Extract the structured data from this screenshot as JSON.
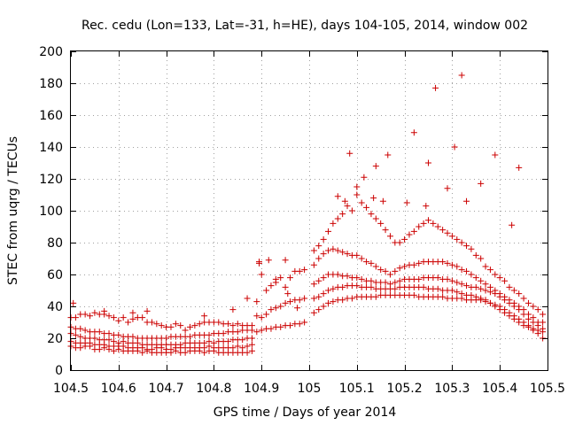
{
  "chart_data": {
    "type": "scatter",
    "title": "Rec. cedu (Lon=133, Lat=-31, h=HE), days 104-105, 2014, window 002",
    "xlabel": "GPS time / Days of year 2014",
    "ylabel": "STEC from uqrg / TECUs",
    "xlim": [
      104.5,
      105.5
    ],
    "ylim": [
      0,
      200
    ],
    "xticks": [
      104.5,
      104.6,
      104.7,
      104.8,
      104.9,
      105,
      105.1,
      105.2,
      105.3,
      105.4,
      105.5
    ],
    "xtick_labels": [
      "104.5",
      "104.6",
      "104.7",
      "104.8",
      "104.9",
      "105",
      "105.1",
      "105.2",
      "105.3",
      "105.4",
      "105.5"
    ],
    "yticks": [
      0,
      20,
      40,
      60,
      80,
      100,
      120,
      140,
      160,
      180,
      200
    ],
    "ytick_labels": [
      "0",
      "20",
      "40",
      "60",
      "80",
      "100",
      "120",
      "140",
      "160",
      "180",
      "200"
    ],
    "grid": true,
    "marker": "plus",
    "color": "#cc0000",
    "series": [
      {
        "name": "STEC",
        "x": [
          104.5,
          104.51,
          104.52,
          104.53,
          104.54,
          104.55,
          104.56,
          104.57,
          104.58,
          104.59,
          104.6,
          104.61,
          104.62,
          104.63,
          104.64,
          104.65,
          104.66,
          104.67,
          104.68,
          104.69,
          104.7,
          104.71,
          104.72,
          104.73,
          104.74,
          104.75,
          104.76,
          104.77,
          104.78,
          104.79,
          104.8,
          104.81,
          104.82,
          104.83,
          104.84,
          104.85,
          104.86,
          104.87,
          104.88,
          104.5,
          104.51,
          104.52,
          104.53,
          104.54,
          104.55,
          104.56,
          104.57,
          104.58,
          104.59,
          104.6,
          104.61,
          104.62,
          104.63,
          104.64,
          104.65,
          104.66,
          104.67,
          104.68,
          104.69,
          104.7,
          104.71,
          104.72,
          104.73,
          104.74,
          104.75,
          104.76,
          104.77,
          104.78,
          104.79,
          104.8,
          104.81,
          104.82,
          104.83,
          104.84,
          104.85,
          104.86,
          104.87,
          104.88,
          104.5,
          104.51,
          104.52,
          104.53,
          104.54,
          104.55,
          104.56,
          104.57,
          104.58,
          104.59,
          104.6,
          104.61,
          104.62,
          104.63,
          104.64,
          104.65,
          104.66,
          104.67,
          104.68,
          104.69,
          104.7,
          104.71,
          104.72,
          104.73,
          104.74,
          104.75,
          104.76,
          104.77,
          104.78,
          104.79,
          104.8,
          104.81,
          104.82,
          104.83,
          104.84,
          104.85,
          104.86,
          104.87,
          104.88,
          104.5,
          104.51,
          104.52,
          104.53,
          104.54,
          104.55,
          104.56,
          104.57,
          104.58,
          104.59,
          104.6,
          104.61,
          104.62,
          104.63,
          104.64,
          104.65,
          104.66,
          104.67,
          104.68,
          104.69,
          104.7,
          104.71,
          104.72,
          104.73,
          104.74,
          104.75,
          104.76,
          104.77,
          104.78,
          104.79,
          104.8,
          104.81,
          104.82,
          104.83,
          104.84,
          104.85,
          104.86,
          104.87,
          104.88,
          104.5,
          104.51,
          104.52,
          104.53,
          104.54,
          104.55,
          104.56,
          104.57,
          104.58,
          104.59,
          104.6,
          104.61,
          104.62,
          104.63,
          104.64,
          104.65,
          104.66,
          104.67,
          104.68,
          104.69,
          104.7,
          104.71,
          104.72,
          104.73,
          104.74,
          104.75,
          104.76,
          104.77,
          104.78,
          104.79,
          104.8,
          104.81,
          104.82,
          104.83,
          104.84,
          104.85,
          104.86,
          104.87,
          104.88,
          104.505,
          104.57,
          104.63,
          104.66,
          104.78,
          104.84,
          104.87,
          104.89,
          104.9,
          104.91,
          104.92,
          104.93,
          104.94,
          104.95,
          104.96,
          104.97,
          104.98,
          104.99,
          104.89,
          104.9,
          104.91,
          104.92,
          104.93,
          104.94,
          104.95,
          104.96,
          104.97,
          104.98,
          104.99,
          104.89,
          104.9,
          104.91,
          104.92,
          104.93,
          104.94,
          104.95,
          104.96,
          104.97,
          104.98,
          104.99,
          104.895,
          104.895,
          104.915,
          104.93,
          104.95,
          104.955,
          104.975,
          105.01,
          105.02,
          105.03,
          105.04,
          105.05,
          105.06,
          105.07,
          105.08,
          105.09,
          105.1,
          105.11,
          105.12,
          105.13,
          105.14,
          105.15,
          105.16,
          105.17,
          105.18,
          105.19,
          105.2,
          105.21,
          105.22,
          105.23,
          105.24,
          105.25,
          105.26,
          105.27,
          105.28,
          105.29,
          105.3,
          105.31,
          105.32,
          105.33,
          105.34,
          105.35,
          105.36,
          105.37,
          105.38,
          105.39,
          105.4,
          105.41,
          105.42,
          105.43,
          105.44,
          105.45,
          105.46,
          105.47,
          105.48,
          105.49,
          105.01,
          105.02,
          105.03,
          105.04,
          105.05,
          105.06,
          105.07,
          105.08,
          105.09,
          105.1,
          105.11,
          105.12,
          105.13,
          105.14,
          105.15,
          105.16,
          105.17,
          105.18,
          105.19,
          105.2,
          105.21,
          105.22,
          105.23,
          105.24,
          105.25,
          105.26,
          105.27,
          105.28,
          105.29,
          105.3,
          105.31,
          105.32,
          105.33,
          105.34,
          105.35,
          105.36,
          105.37,
          105.38,
          105.39,
          105.4,
          105.41,
          105.42,
          105.43,
          105.44,
          105.45,
          105.46,
          105.47,
          105.48,
          105.49,
          105.01,
          105.02,
          105.03,
          105.04,
          105.05,
          105.06,
          105.07,
          105.08,
          105.09,
          105.1,
          105.11,
          105.12,
          105.13,
          105.14,
          105.15,
          105.16,
          105.17,
          105.18,
          105.19,
          105.2,
          105.21,
          105.22,
          105.23,
          105.24,
          105.25,
          105.26,
          105.27,
          105.28,
          105.29,
          105.3,
          105.31,
          105.32,
          105.33,
          105.34,
          105.35,
          105.36,
          105.37,
          105.38,
          105.39,
          105.4,
          105.41,
          105.42,
          105.43,
          105.44,
          105.45,
          105.46,
          105.47,
          105.48,
          105.49,
          105.01,
          105.02,
          105.03,
          105.04,
          105.05,
          105.06,
          105.07,
          105.08,
          105.09,
          105.1,
          105.11,
          105.12,
          105.13,
          105.14,
          105.15,
          105.16,
          105.17,
          105.18,
          105.19,
          105.2,
          105.21,
          105.22,
          105.23,
          105.24,
          105.25,
          105.26,
          105.27,
          105.28,
          105.29,
          105.3,
          105.31,
          105.32,
          105.33,
          105.34,
          105.35,
          105.36,
          105.37,
          105.38,
          105.39,
          105.4,
          105.41,
          105.42,
          105.43,
          105.44,
          105.45,
          105.46,
          105.47,
          105.48,
          105.49,
          105.01,
          105.02,
          105.03,
          105.04,
          105.05,
          105.06,
          105.07,
          105.08,
          105.09,
          105.1,
          105.11,
          105.12,
          105.13,
          105.14,
          105.15,
          105.16,
          105.17,
          105.18,
          105.19,
          105.2,
          105.21,
          105.22,
          105.23,
          105.24,
          105.25,
          105.26,
          105.27,
          105.28,
          105.29,
          105.3,
          105.31,
          105.32,
          105.33,
          105.34,
          105.35,
          105.36,
          105.37,
          105.38,
          105.39,
          105.4,
          105.41,
          105.42,
          105.43,
          105.44,
          105.45,
          105.46,
          105.47,
          105.48,
          105.49,
          105.085,
          105.1,
          105.115,
          105.14,
          105.165,
          105.22,
          105.25,
          105.265,
          105.305,
          105.32,
          105.36,
          105.39,
          105.425,
          105.44,
          105.245,
          105.29,
          105.33,
          105.205,
          105.135,
          105.155,
          105.06,
          105.075
        ],
        "y": [
          15,
          14,
          14,
          15,
          15,
          13,
          13,
          14,
          13,
          12,
          13,
          12,
          12,
          12,
          12,
          11,
          12,
          11,
          11,
          11,
          11,
          11,
          12,
          11,
          11,
          12,
          12,
          12,
          11,
          12,
          12,
          11,
          11,
          11,
          11,
          11,
          11,
          11,
          12,
          18,
          17,
          17,
          17,
          17,
          16,
          16,
          16,
          15,
          15,
          15,
          15,
          14,
          14,
          14,
          14,
          13,
          13,
          14,
          14,
          13,
          13,
          14,
          14,
          14,
          14,
          14,
          14,
          14,
          15,
          14,
          14,
          14,
          14,
          14,
          15,
          14,
          15,
          16,
          23,
          22,
          21,
          20,
          20,
          20,
          19,
          19,
          19,
          18,
          17,
          18,
          17,
          17,
          17,
          16,
          16,
          16,
          16,
          16,
          16,
          16,
          16,
          16,
          17,
          17,
          17,
          17,
          17,
          18,
          17,
          18,
          18,
          18,
          19,
          19,
          19,
          20,
          20,
          27,
          26,
          26,
          25,
          24,
          24,
          24,
          23,
          23,
          22,
          22,
          21,
          21,
          21,
          20,
          20,
          20,
          20,
          20,
          20,
          20,
          21,
          21,
          21,
          21,
          21,
          22,
          22,
          22,
          22,
          23,
          23,
          23,
          24,
          24,
          24,
          25,
          25,
          25,
          33,
          33,
          35,
          35,
          34,
          36,
          35,
          35,
          34,
          33,
          31,
          33,
          30,
          32,
          33,
          33,
          30,
          30,
          29,
          28,
          27,
          27,
          29,
          28,
          25,
          27,
          28,
          29,
          30,
          30,
          30,
          30,
          29,
          29,
          28,
          29,
          28,
          28,
          28,
          42,
          37,
          36,
          37,
          34,
          38,
          45,
          24,
          25,
          26,
          26,
          27,
          27,
          28,
          28,
          29,
          29,
          30,
          34,
          33,
          35,
          38,
          39,
          40,
          42,
          43,
          44,
          44,
          45,
          43,
          60,
          50,
          53,
          57,
          58,
          52,
          58,
          62,
          62,
          63,
          67,
          68,
          69,
          55,
          69,
          48,
          39,
          75,
          78,
          82,
          87,
          92,
          95,
          98,
          103,
          100,
          110,
          105,
          102,
          98,
          95,
          92,
          88,
          84,
          80,
          80,
          82,
          85,
          87,
          90,
          92,
          94,
          92,
          90,
          88,
          86,
          84,
          82,
          80,
          78,
          76,
          72,
          70,
          65,
          63,
          60,
          58,
          56,
          52,
          50,
          48,
          45,
          42,
          40,
          38,
          35,
          66,
          70,
          73,
          75,
          76,
          75,
          74,
          73,
          72,
          72,
          70,
          68,
          67,
          65,
          63,
          62,
          60,
          62,
          64,
          65,
          66,
          66,
          67,
          68,
          68,
          68,
          68,
          68,
          67,
          66,
          65,
          63,
          62,
          60,
          58,
          56,
          54,
          52,
          50,
          48,
          46,
          44,
          42,
          40,
          38,
          35,
          33,
          30,
          30,
          54,
          56,
          58,
          60,
          60,
          60,
          59,
          59,
          58,
          58,
          57,
          56,
          56,
          55,
          55,
          55,
          54,
          55,
          56,
          57,
          57,
          57,
          57,
          58,
          58,
          58,
          58,
          57,
          57,
          56,
          55,
          54,
          53,
          52,
          52,
          51,
          50,
          49,
          48,
          46,
          44,
          42,
          40,
          38,
          35,
          32,
          30,
          28,
          26,
          45,
          46,
          48,
          50,
          51,
          52,
          52,
          53,
          53,
          53,
          52,
          52,
          52,
          51,
          51,
          51,
          51,
          51,
          52,
          52,
          52,
          52,
          52,
          52,
          51,
          51,
          51,
          50,
          50,
          50,
          49,
          48,
          47,
          47,
          46,
          45,
          44,
          42,
          40,
          38,
          36,
          34,
          32,
          30,
          28,
          27,
          26,
          25,
          24,
          36,
          38,
          40,
          42,
          43,
          44,
          44,
          45,
          45,
          46,
          46,
          46,
          46,
          46,
          47,
          47,
          47,
          47,
          47,
          47,
          47,
          47,
          46,
          46,
          46,
          46,
          46,
          46,
          45,
          45,
          45,
          45,
          44,
          44,
          44,
          44,
          43,
          42,
          41,
          40,
          38,
          36,
          34,
          32,
          30,
          28,
          25,
          23,
          20,
          136,
          115,
          121,
          128,
          135,
          149,
          130,
          177,
          140,
          185,
          117,
          135,
          91,
          127,
          103,
          114,
          106,
          105,
          108,
          106,
          109,
          106
        ]
      }
    ]
  }
}
